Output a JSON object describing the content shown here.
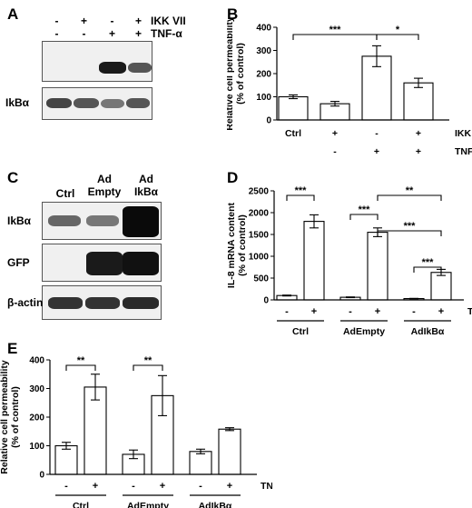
{
  "panels": {
    "a": {
      "label": "A",
      "row_ikk": {
        "signs": [
          "-",
          "+",
          "-",
          "+"
        ],
        "name": "IKK VII"
      },
      "row_tnf": {
        "signs": [
          "-",
          "-",
          "+",
          "+"
        ],
        "name": "TNF-α"
      },
      "blot_bottom_label": "IkBα"
    },
    "c": {
      "label": "C",
      "columns": [
        "Ctrl",
        "Ad\nEmpty",
        "Ad\nIkBα"
      ],
      "blots": [
        "IkBα",
        "GFP",
        "β-actin"
      ]
    },
    "b": {
      "label": "B"
    },
    "d": {
      "label": "D"
    },
    "e": {
      "label": "E"
    }
  },
  "chart_data": [
    {
      "panel": "B",
      "type": "bar",
      "ylabel": "Relative cell permeability\n(% of control)",
      "ylim": [
        0,
        400
      ],
      "yticks": [
        0,
        100,
        200,
        300,
        400
      ],
      "categories": [
        "Ctrl",
        "+",
        "-",
        "+"
      ],
      "row2": [
        "",
        "-",
        "+",
        "+"
      ],
      "row_labels": [
        "IKK VII",
        "TNF-α"
      ],
      "values": [
        100,
        70,
        275,
        160
      ],
      "errors": [
        8,
        10,
        45,
        20
      ],
      "significance": [
        {
          "from": 0,
          "to": 2,
          "label": "***"
        },
        {
          "from": 2,
          "to": 3,
          "label": "*"
        }
      ]
    },
    {
      "panel": "D",
      "type": "bar",
      "ylabel": "IL-8 mRNA content\n(% of control)",
      "ylim": [
        0,
        2500
      ],
      "yticks": [
        0,
        500,
        1000,
        1500,
        2000,
        2500
      ],
      "signs": [
        "-",
        "+",
        "-",
        "+",
        "-",
        "+"
      ],
      "groups": [
        "Ctrl",
        "AdEmpty",
        "AdIkBα"
      ],
      "treatment_label": "TNF-α",
      "values": [
        100,
        1800,
        60,
        1550,
        30,
        630
      ],
      "errors": [
        10,
        150,
        8,
        100,
        5,
        70
      ],
      "significance": [
        {
          "from": 0,
          "to": 1,
          "label": "***"
        },
        {
          "from": 2,
          "to": 3,
          "label": "***"
        },
        {
          "from": 3,
          "to": 5,
          "label": "***"
        },
        {
          "from": 4,
          "to": 5,
          "label": "***"
        },
        {
          "from": 3,
          "to": 5,
          "label": "**",
          "upper": true
        }
      ]
    },
    {
      "panel": "E",
      "type": "bar",
      "ylabel": "Relative cell permeability\n(% of control)",
      "ylim": [
        0,
        400
      ],
      "yticks": [
        0,
        100,
        200,
        300,
        400
      ],
      "signs": [
        "-",
        "+",
        "-",
        "+",
        "-",
        "+"
      ],
      "groups": [
        "Ctrl",
        "AdEmpty",
        "AdIkBα"
      ],
      "treatment_label": "TNF-α",
      "values": [
        100,
        305,
        70,
        275,
        80,
        158
      ],
      "errors": [
        12,
        45,
        15,
        70,
        8,
        5
      ],
      "significance": [
        {
          "from": 0,
          "to": 1,
          "label": "**"
        },
        {
          "from": 2,
          "to": 3,
          "label": "**"
        }
      ]
    }
  ]
}
